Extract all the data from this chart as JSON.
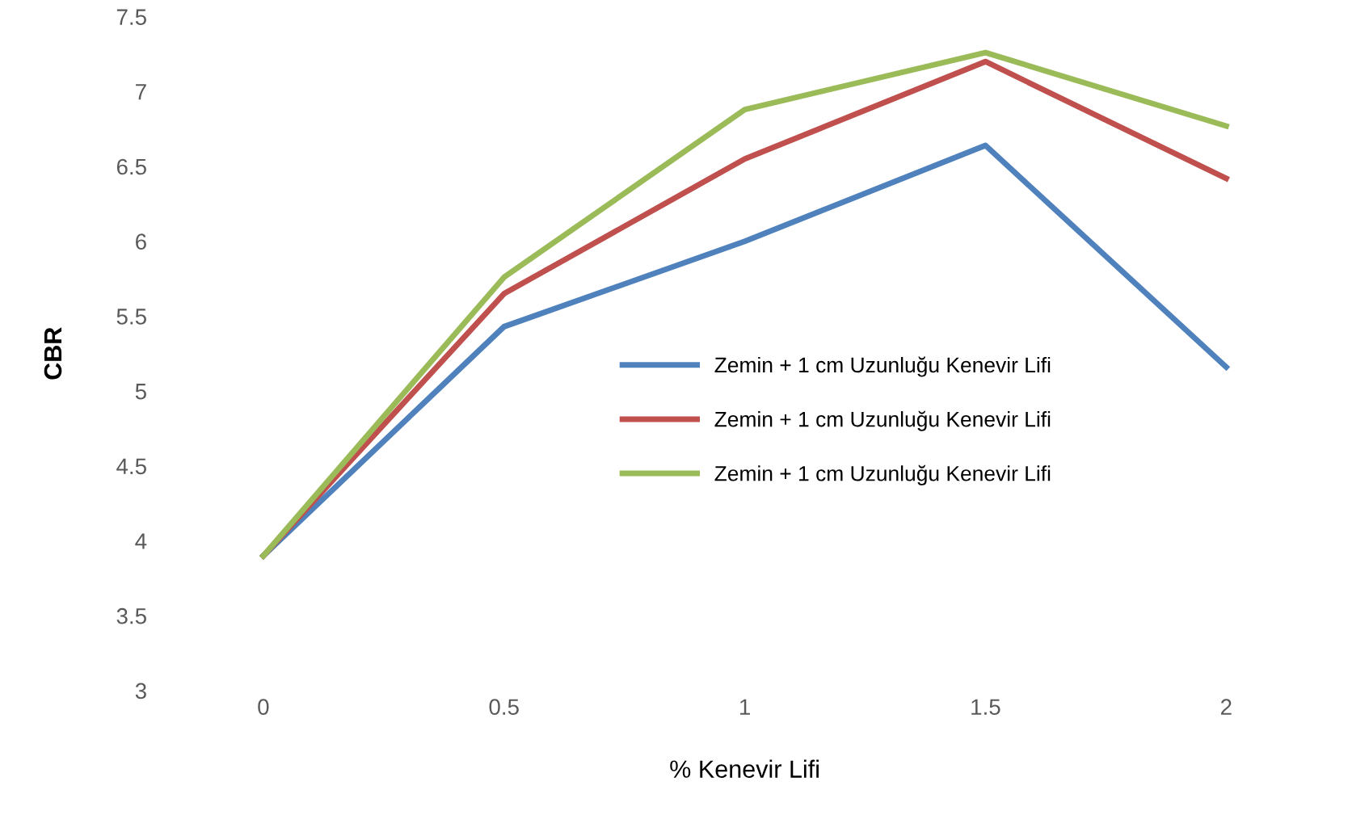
{
  "chart_data": {
    "type": "line",
    "xlabel": "% Kenevir Lifi",
    "ylabel": "CBR",
    "categories": [
      "0",
      "0.5",
      "1",
      "1.5",
      "2"
    ],
    "series": [
      {
        "name": "Zemin + 1 cm Uzunluğu Kenevir Lifi",
        "color": "#4f81bd",
        "values": [
          3.9,
          5.43,
          6.0,
          6.64,
          5.16
        ]
      },
      {
        "name": "Zemin + 1 cm Uzunluğu Kenevir Lifi",
        "color": "#c0504d",
        "values": [
          3.9,
          5.65,
          6.55,
          7.2,
          6.42
        ]
      },
      {
        "name": "Zemin + 1 cm Uzunluğu Kenevir Lifi",
        "color": "#9bbb59",
        "values": [
          3.9,
          5.76,
          6.88,
          7.26,
          6.77
        ]
      }
    ],
    "ylim": [
      3,
      7.5
    ],
    "yticks": [
      3,
      3.5,
      4,
      4.5,
      5,
      5.5,
      6,
      6.5,
      7,
      7.5
    ],
    "grid": false,
    "legend": "right",
    "marker": "none",
    "line_style": "solid"
  }
}
